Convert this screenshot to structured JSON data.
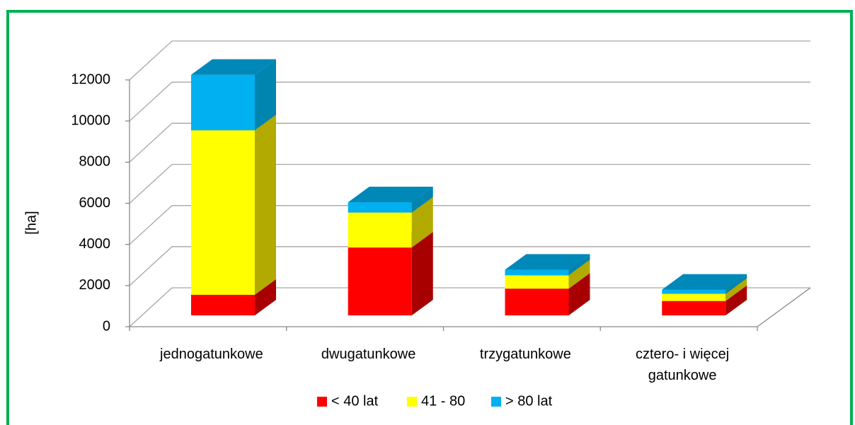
{
  "chart_data": {
    "type": "bar3d_stacked",
    "y_axis_label": "[ha]",
    "categories": [
      "jednogatunkowe",
      "dwugatunkowe",
      "trzygatunkowe",
      "cztero- i więcej gatunkowe"
    ],
    "series": [
      {
        "name": "< 40 lat",
        "color": "#ff0000",
        "side_color": "#a80000",
        "values": [
          1000,
          3300,
          1300,
          700
        ]
      },
      {
        "name": "41 - 80",
        "color": "#ffff00",
        "side_color": "#b3aa00",
        "values": [
          8000,
          1700,
          650,
          350
        ]
      },
      {
        "name": "> 80 lat",
        "color": "#00b0f0",
        "side_color": "#0084b0",
        "values": [
          2700,
          500,
          270,
          200
        ]
      }
    ],
    "ylim": [
      0,
      12000
    ],
    "yticks": [
      0,
      2000,
      4000,
      6000,
      8000,
      10000,
      12000
    ],
    "grid": true,
    "legend": "bottom",
    "border_color": "#00b050"
  }
}
